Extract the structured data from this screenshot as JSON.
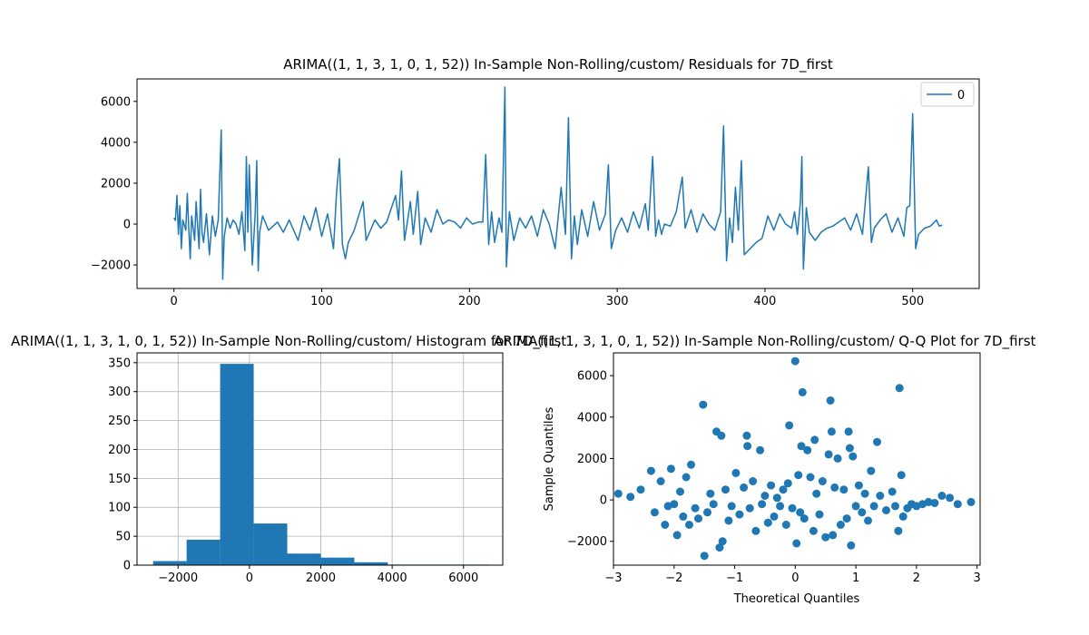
{
  "chart_data": [
    {
      "type": "line",
      "title": "ARIMA((1, 1, 3, 1, 0, 1, 52)) In-Sample Non-Rolling/custom/ Residuals for 7D_first",
      "xlabel": "",
      "ylabel": "",
      "xlim": [
        -25,
        545
      ],
      "ylim": [
        -3150,
        7100
      ],
      "xticks": [
        0,
        100,
        200,
        300,
        400,
        500
      ],
      "yticks": [
        -2000,
        0,
        2000,
        4000,
        6000
      ],
      "grid": false,
      "legend": "top-right",
      "color": "#1f77b4",
      "series": [
        {
          "name": "0",
          "points": [
            [
              0,
              300
            ],
            [
              1,
              180
            ],
            [
              2,
              1400
            ],
            [
              3,
              -500
            ],
            [
              4,
              900
            ],
            [
              5,
              -1200
            ],
            [
              6,
              200
            ],
            [
              8,
              -300
            ],
            [
              9,
              1500
            ],
            [
              10,
              -200
            ],
            [
              11,
              -1700
            ],
            [
              12,
              400
            ],
            [
              14,
              -800
            ],
            [
              15,
              1100
            ],
            [
              17,
              -1200
            ],
            [
              18,
              1700
            ],
            [
              19,
              -400
            ],
            [
              20,
              -900
            ],
            [
              22,
              500
            ],
            [
              24,
              -1500
            ],
            [
              26,
              400
            ],
            [
              28,
              -600
            ],
            [
              30,
              200
            ],
            [
              32,
              4600
            ],
            [
              33,
              -2700
            ],
            [
              34,
              -600
            ],
            [
              36,
              300
            ],
            [
              38,
              -200
            ],
            [
              40,
              200
            ],
            [
              42,
              0
            ],
            [
              44,
              -500
            ],
            [
              46,
              600
            ],
            [
              48,
              -1300
            ],
            [
              49,
              3300
            ],
            [
              50,
              -400
            ],
            [
              51,
              2900
            ],
            [
              53,
              -2000
            ],
            [
              55,
              500
            ],
            [
              56,
              3100
            ],
            [
              57,
              -2300
            ],
            [
              58,
              -400
            ],
            [
              60,
              400
            ],
            [
              64,
              -300
            ],
            [
              70,
              100
            ],
            [
              74,
              -400
            ],
            [
              78,
              200
            ],
            [
              84,
              -800
            ],
            [
              88,
              400
            ],
            [
              92,
              -300
            ],
            [
              96,
              800
            ],
            [
              100,
              -600
            ],
            [
              104,
              500
            ],
            [
              108,
              -1200
            ],
            [
              110,
              1500
            ],
            [
              112,
              3200
            ],
            [
              114,
              -1000
            ],
            [
              116,
              -1700
            ],
            [
              118,
              -900
            ],
            [
              122,
              -300
            ],
            [
              128,
              1100
            ],
            [
              130,
              -800
            ],
            [
              136,
              200
            ],
            [
              140,
              -200
            ],
            [
              144,
              100
            ],
            [
              150,
              1400
            ],
            [
              152,
              200
            ],
            [
              154,
              2600
            ],
            [
              156,
              -800
            ],
            [
              158,
              100
            ],
            [
              160,
              1100
            ],
            [
              162,
              -500
            ],
            [
              165,
              1600
            ],
            [
              167,
              -1000
            ],
            [
              170,
              300
            ],
            [
              174,
              -400
            ],
            [
              178,
              700
            ],
            [
              182,
              0
            ],
            [
              186,
              200
            ],
            [
              190,
              100
            ],
            [
              194,
              -200
            ],
            [
              198,
              300
            ],
            [
              202,
              0
            ],
            [
              206,
              100
            ],
            [
              209,
              100
            ],
            [
              211,
              3400
            ],
            [
              213,
              -1000
            ],
            [
              215,
              600
            ],
            [
              217,
              -900
            ],
            [
              220,
              300
            ],
            [
              222,
              -400
            ],
            [
              224,
              6700
            ],
            [
              225,
              -2100
            ],
            [
              227,
              600
            ],
            [
              230,
              -800
            ],
            [
              234,
              300
            ],
            [
              238,
              -200
            ],
            [
              242,
              400
            ],
            [
              246,
              -600
            ],
            [
              250,
              700
            ],
            [
              254,
              0
            ],
            [
              258,
              -1200
            ],
            [
              262,
              1800
            ],
            [
              265,
              -500
            ],
            [
              267,
              5200
            ],
            [
              269,
              -1700
            ],
            [
              271,
              400
            ],
            [
              273,
              -1000
            ],
            [
              276,
              700
            ],
            [
              280,
              -600
            ],
            [
              284,
              1100
            ],
            [
              288,
              -300
            ],
            [
              292,
              500
            ],
            [
              294,
              2900
            ],
            [
              296,
              -1200
            ],
            [
              299,
              -300
            ],
            [
              303,
              300
            ],
            [
              307,
              -400
            ],
            [
              311,
              600
            ],
            [
              315,
              -200
            ],
            [
              319,
              1000
            ],
            [
              321,
              -300
            ],
            [
              324,
              3300
            ],
            [
              326,
              -600
            ],
            [
              328,
              200
            ],
            [
              330,
              -500
            ],
            [
              332,
              0
            ],
            [
              336,
              -100
            ],
            [
              340,
              600
            ],
            [
              344,
              2300
            ],
            [
              346,
              -200
            ],
            [
              350,
              700
            ],
            [
              354,
              -400
            ],
            [
              358,
              500
            ],
            [
              362,
              0
            ],
            [
              366,
              -300
            ],
            [
              370,
              600
            ],
            [
              372,
              4800
            ],
            [
              374,
              -1800
            ],
            [
              376,
              300
            ],
            [
              378,
              -900
            ],
            [
              380,
              1800
            ],
            [
              382,
              -300
            ],
            [
              384,
              3100
            ],
            [
              386,
              -1500
            ],
            [
              390,
              -1200
            ],
            [
              394,
              -900
            ],
            [
              398,
              -700
            ],
            [
              402,
              400
            ],
            [
              406,
              -300
            ],
            [
              410,
              500
            ],
            [
              414,
              0
            ],
            [
              418,
              -200
            ],
            [
              420,
              600
            ],
            [
              422,
              -500
            ],
            [
              424,
              1100
            ],
            [
              425,
              3300
            ],
            [
              426,
              -2200
            ],
            [
              428,
              800
            ],
            [
              430,
              -400
            ],
            [
              434,
              -800
            ],
            [
              438,
              -400
            ],
            [
              442,
              -200
            ],
            [
              446,
              -100
            ],
            [
              450,
              100
            ],
            [
              454,
              300
            ],
            [
              458,
              -300
            ],
            [
              462,
              500
            ],
            [
              466,
              -500
            ],
            [
              470,
              2800
            ],
            [
              472,
              -900
            ],
            [
              474,
              -200
            ],
            [
              478,
              200
            ],
            [
              482,
              500
            ],
            [
              486,
              -400
            ],
            [
              490,
              300
            ],
            [
              494,
              -600
            ],
            [
              496,
              800
            ],
            [
              498,
              900
            ],
            [
              500,
              5400
            ],
            [
              502,
              -1200
            ],
            [
              504,
              -500
            ],
            [
              508,
              -200
            ],
            [
              512,
              -100
            ],
            [
              516,
              200
            ],
            [
              518,
              -100
            ],
            [
              520,
              -50
            ]
          ]
        }
      ]
    },
    {
      "type": "bar",
      "title": "ARIMA((1, 1, 3, 1, 0, 1, 52)) In-Sample Non-Rolling/custom/ Histogram for 7D_first",
      "xlabel": "",
      "ylabel": "",
      "xlim": [
        -3150,
        7100
      ],
      "ylim": [
        0,
        367
      ],
      "xticks": [
        -2000,
        0,
        2000,
        4000,
        6000
      ],
      "yticks": [
        0,
        50,
        100,
        150,
        200,
        250,
        300,
        350
      ],
      "grid": true,
      "color": "#1f77b4",
      "bin_edges": [
        -2700,
        -1760,
        -820,
        120,
        1060,
        2000,
        2940,
        3880,
        4820,
        5760,
        6700
      ],
      "counts": [
        7,
        44,
        348,
        72,
        20,
        13,
        5,
        1,
        1,
        1
      ]
    },
    {
      "type": "scatter",
      "title": "ARIMA((1, 1, 3, 1, 0, 1, 52)) In-Sample Non-Rolling/custom/ Q-Q Plot for 7D_first",
      "xlabel": "Theoretical Quantiles",
      "ylabel": "Sample Quantiles",
      "xlim": [
        -3,
        3.05
      ],
      "ylim": [
        -3150,
        7100
      ],
      "xticks": [
        -3,
        -2,
        -1,
        0,
        1,
        2,
        3
      ],
      "yticks": [
        -2000,
        0,
        2000,
        4000,
        6000
      ],
      "grid": false,
      "color": "#1f77b4",
      "points": [
        [
          -2.92,
          300
        ],
        [
          -2.72,
          150
        ],
        [
          -2.55,
          500
        ],
        [
          -2.38,
          1400
        ],
        [
          -2.32,
          -600
        ],
        [
          -2.22,
          900
        ],
        [
          -2.15,
          -1200
        ],
        [
          -2.1,
          -300
        ],
        [
          -2.05,
          1500
        ],
        [
          -2.0,
          -200
        ],
        [
          -1.95,
          -1700
        ],
        [
          -1.9,
          400
        ],
        [
          -1.85,
          -800
        ],
        [
          -1.8,
          1100
        ],
        [
          -1.75,
          -1200
        ],
        [
          -1.72,
          1700
        ],
        [
          -1.65,
          -400
        ],
        [
          -1.6,
          -900
        ],
        [
          -1.52,
          4600
        ],
        [
          -1.5,
          -2700
        ],
        [
          -1.45,
          -600
        ],
        [
          -1.4,
          300
        ],
        [
          -1.35,
          -200
        ],
        [
          -1.3,
          3300
        ],
        [
          -1.25,
          -2300
        ],
        [
          -1.22,
          3100
        ],
        [
          -1.2,
          -2000
        ],
        [
          -1.15,
          500
        ],
        [
          -1.1,
          -1000
        ],
        [
          -1.05,
          -300
        ],
        [
          -0.98,
          1300
        ],
        [
          -0.92,
          -700
        ],
        [
          -0.85,
          600
        ],
        [
          -0.8,
          3100
        ],
        [
          -0.79,
          2600
        ],
        [
          -0.75,
          -400
        ],
        [
          -0.7,
          900
        ],
        [
          -0.65,
          -1500
        ],
        [
          -0.58,
          2400
        ],
        [
          -0.55,
          -200
        ],
        [
          -0.5,
          200
        ],
        [
          -0.45,
          -1100
        ],
        [
          -0.4,
          700
        ],
        [
          -0.35,
          -800
        ],
        [
          -0.3,
          100
        ],
        [
          -0.25,
          -300
        ],
        [
          -0.2,
          500
        ],
        [
          -0.15,
          -1200
        ],
        [
          -0.12,
          800
        ],
        [
          -0.1,
          3600
        ],
        [
          -0.05,
          -400
        ],
        [
          0.0,
          6700
        ],
        [
          0.02,
          -2100
        ],
        [
          0.05,
          1200
        ],
        [
          0.08,
          -600
        ],
        [
          0.1,
          2600
        ],
        [
          0.12,
          5200
        ],
        [
          0.15,
          -900
        ],
        [
          0.2,
          2400
        ],
        [
          0.25,
          1100
        ],
        [
          0.3,
          -1500
        ],
        [
          0.32,
          2900
        ],
        [
          0.35,
          300
        ],
        [
          0.4,
          -700
        ],
        [
          0.45,
          900
        ],
        [
          0.5,
          -1800
        ],
        [
          0.55,
          2200
        ],
        [
          0.58,
          4800
        ],
        [
          0.6,
          3300
        ],
        [
          0.62,
          -1700
        ],
        [
          0.65,
          600
        ],
        [
          0.7,
          2000
        ],
        [
          0.75,
          -1200
        ],
        [
          0.8,
          500
        ],
        [
          0.85,
          -900
        ],
        [
          0.88,
          3300
        ],
        [
          0.9,
          2500
        ],
        [
          0.92,
          -2200
        ],
        [
          0.95,
          2100
        ],
        [
          1.0,
          -300
        ],
        [
          1.05,
          700
        ],
        [
          1.1,
          -600
        ],
        [
          1.15,
          300
        ],
        [
          1.2,
          -1000
        ],
        [
          1.25,
          1400
        ],
        [
          1.3,
          -300
        ],
        [
          1.35,
          2800
        ],
        [
          1.4,
          200
        ],
        [
          1.5,
          -500
        ],
        [
          1.6,
          400
        ],
        [
          1.65,
          -300
        ],
        [
          1.7,
          -1500
        ],
        [
          1.72,
          5400
        ],
        [
          1.75,
          1200
        ],
        [
          1.78,
          -800
        ],
        [
          1.85,
          -400
        ],
        [
          1.92,
          -200
        ],
        [
          2.0,
          -300
        ],
        [
          2.1,
          -200
        ],
        [
          2.2,
          -100
        ],
        [
          2.3,
          -150
        ],
        [
          2.42,
          200
        ],
        [
          2.55,
          100
        ],
        [
          2.68,
          -200
        ],
        [
          2.9,
          -100
        ]
      ]
    }
  ]
}
